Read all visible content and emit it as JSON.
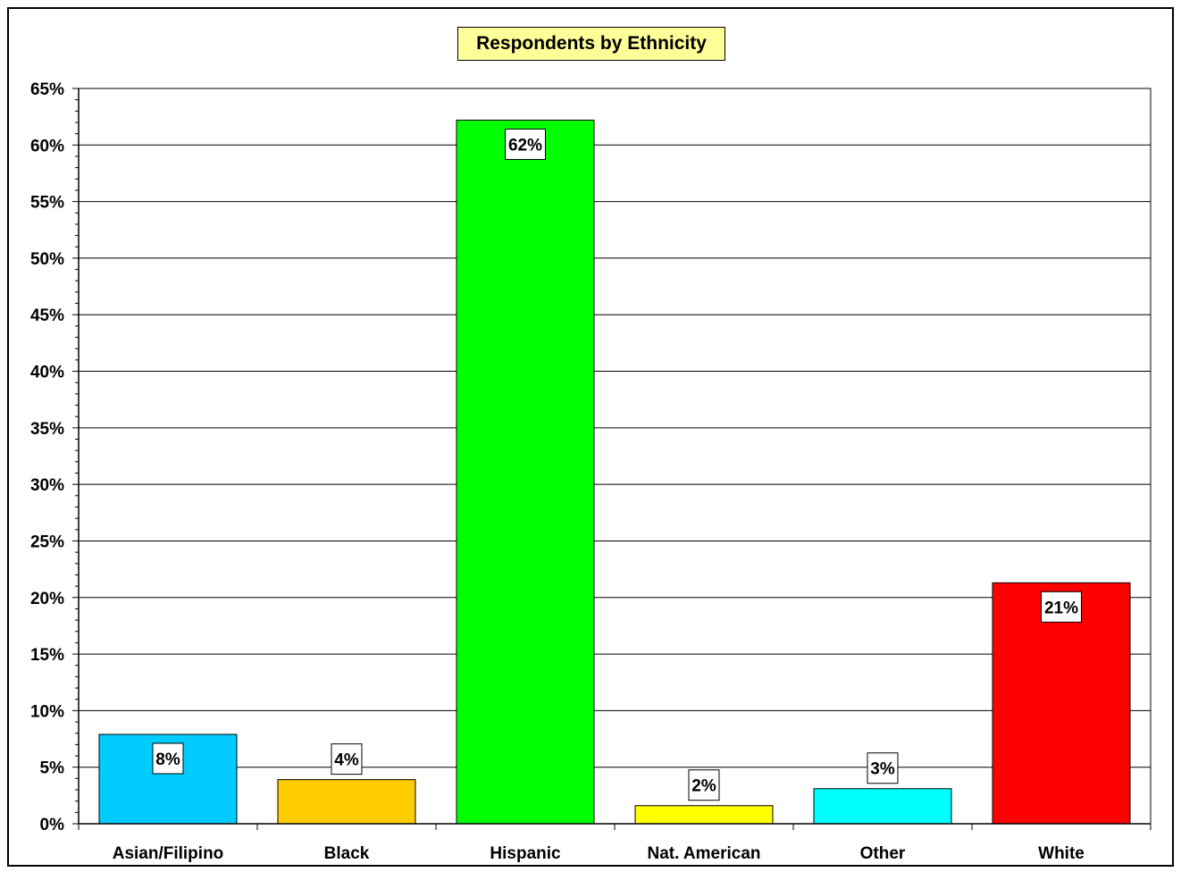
{
  "chart_data": {
    "type": "bar",
    "title": "Respondents by Ethnicity",
    "xlabel": "",
    "ylabel": "",
    "categories": [
      "Asian/Filipino",
      "Black",
      "Hispanic",
      "Nat. American",
      "Other",
      "White"
    ],
    "values": [
      7.9,
      3.9,
      62.2,
      1.6,
      3.1,
      21.3
    ],
    "data_labels": [
      "8%",
      "4%",
      "62%",
      "2%",
      "3%",
      "21%"
    ],
    "colors": [
      "#00ccff",
      "#ffcc00",
      "#00ff00",
      "#ffff00",
      "#00ffff",
      "#ff0000"
    ],
    "ylim": [
      0,
      65
    ],
    "y_major_step": 5,
    "y_minor_step": 1,
    "y_tick_format": "percent",
    "grid": true,
    "legend": "none"
  }
}
